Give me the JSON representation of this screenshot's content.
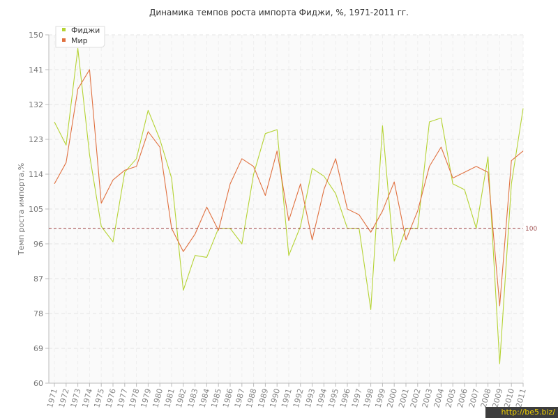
{
  "chart_data": {
    "type": "line",
    "title": "Динамика темпов роста импорта Фиджи, %, 1971-2011 гг.",
    "ylabel": "Темп роста импорта,%",
    "xlabel": "",
    "ylim": [
      60,
      150
    ],
    "yticks": [
      60,
      69,
      78,
      87,
      96,
      105,
      114,
      123,
      132,
      141,
      150
    ],
    "grid": true,
    "legend_position": "top-left",
    "x": [
      "1971",
      "1972",
      "1973",
      "1974",
      "1975",
      "1976",
      "1977",
      "1978",
      "1979",
      "1980",
      "1981",
      "1982",
      "1983",
      "1984",
      "1985",
      "1986",
      "1987",
      "1988",
      "1989",
      "1990",
      "1991",
      "1992",
      "1993",
      "1994",
      "1995",
      "1996",
      "1997",
      "1998",
      "1999",
      "2000",
      "2001",
      "2002",
      "2003",
      "2004",
      "2005",
      "2006",
      "2007",
      "2008",
      "2009",
      "2010",
      "2011"
    ],
    "series": [
      {
        "name": "Фиджи",
        "color": "#b5d334",
        "values": [
          127.5,
          121.5,
          146.5,
          119,
          100.5,
          96.5,
          114.5,
          118,
          130.5,
          123,
          113,
          84,
          93,
          92.5,
          100,
          100,
          96,
          114,
          124.5,
          125.5,
          93,
          100.5,
          115.5,
          113.5,
          109,
          100,
          100,
          79,
          126.5,
          91.5,
          100,
          100,
          127.5,
          128.5,
          111.5,
          110,
          100,
          118.5,
          65,
          111.5,
          131
        ]
      },
      {
        "name": "Мир",
        "color": "#e0703f",
        "values": [
          111.5,
          117,
          136,
          141,
          106.5,
          112.5,
          115,
          116,
          125,
          121,
          100,
          94,
          98.5,
          105.5,
          99.5,
          111.5,
          118,
          116,
          108.5,
          120,
          102,
          111.5,
          97,
          110,
          118,
          105,
          103.5,
          99,
          104.5,
          112,
          97,
          104.5,
          116,
          121,
          113,
          114.5,
          116,
          114.5,
          80,
          117.5,
          120
        ]
      }
    ],
    "reference_line": {
      "value": 100,
      "label": "100",
      "color": "#9a3a3a"
    }
  },
  "watermark": "http://be5.biz/"
}
